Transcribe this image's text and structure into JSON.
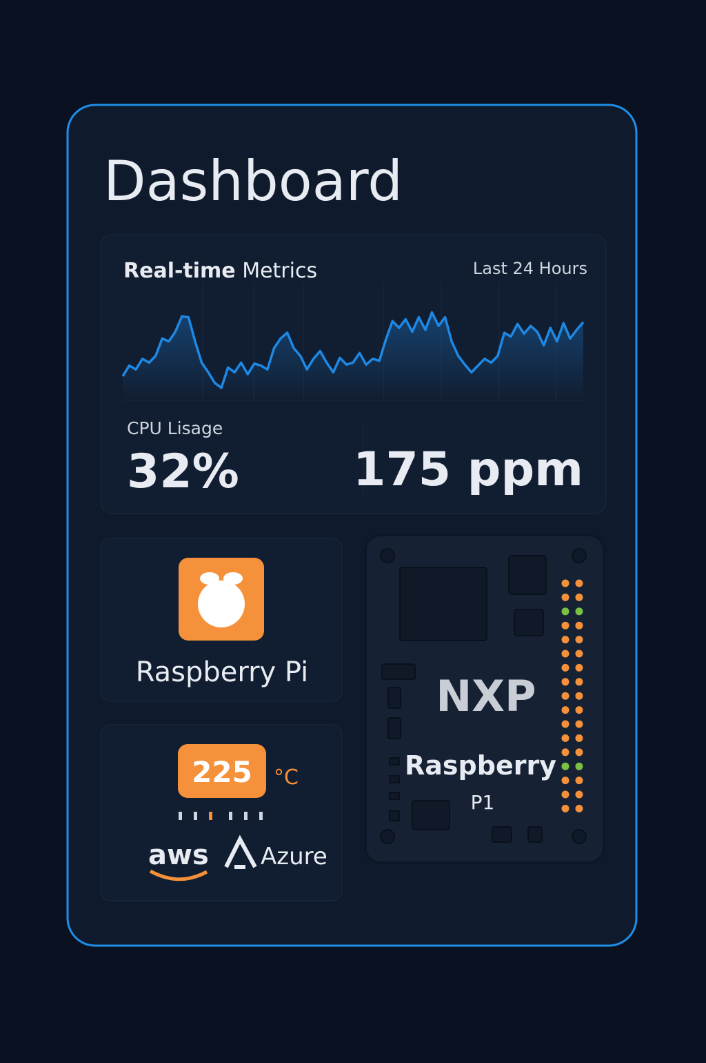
{
  "header": {
    "title": "Dashboard"
  },
  "metrics": {
    "title_bold": "Real-time",
    "title_rest": "Metrics",
    "range": "Last 24 Hours",
    "cpu_label": "CPU Lisage",
    "cpu_value": "32%",
    "ppm_value": "175 ppm",
    "chart_data": {
      "type": "line",
      "color": "#1e88e5",
      "ylim": [
        0,
        100
      ],
      "values": [
        25,
        36,
        32,
        43,
        39,
        46,
        64,
        61,
        71,
        87,
        86,
        61,
        39,
        29,
        18,
        13,
        34,
        29,
        39,
        27,
        38,
        36,
        32,
        54,
        64,
        70,
        54,
        46,
        32,
        43,
        51,
        39,
        29,
        44,
        37,
        39,
        49,
        37,
        43,
        41,
        63,
        82,
        75,
        84,
        71,
        86,
        73,
        91,
        77,
        86,
        61,
        46,
        37,
        29,
        36,
        43,
        39,
        46,
        70,
        66,
        79,
        69,
        77,
        71,
        57,
        75,
        61,
        80,
        64,
        73,
        81
      ]
    }
  },
  "device": {
    "name": "Raspberry Pi"
  },
  "sensor": {
    "temperature": "225",
    "unit": "°C",
    "cloud_1": "aws",
    "cloud_2": "Azure"
  },
  "board": {
    "brand": "NXP",
    "line1": "Raspberry",
    "line2": "P1"
  }
}
